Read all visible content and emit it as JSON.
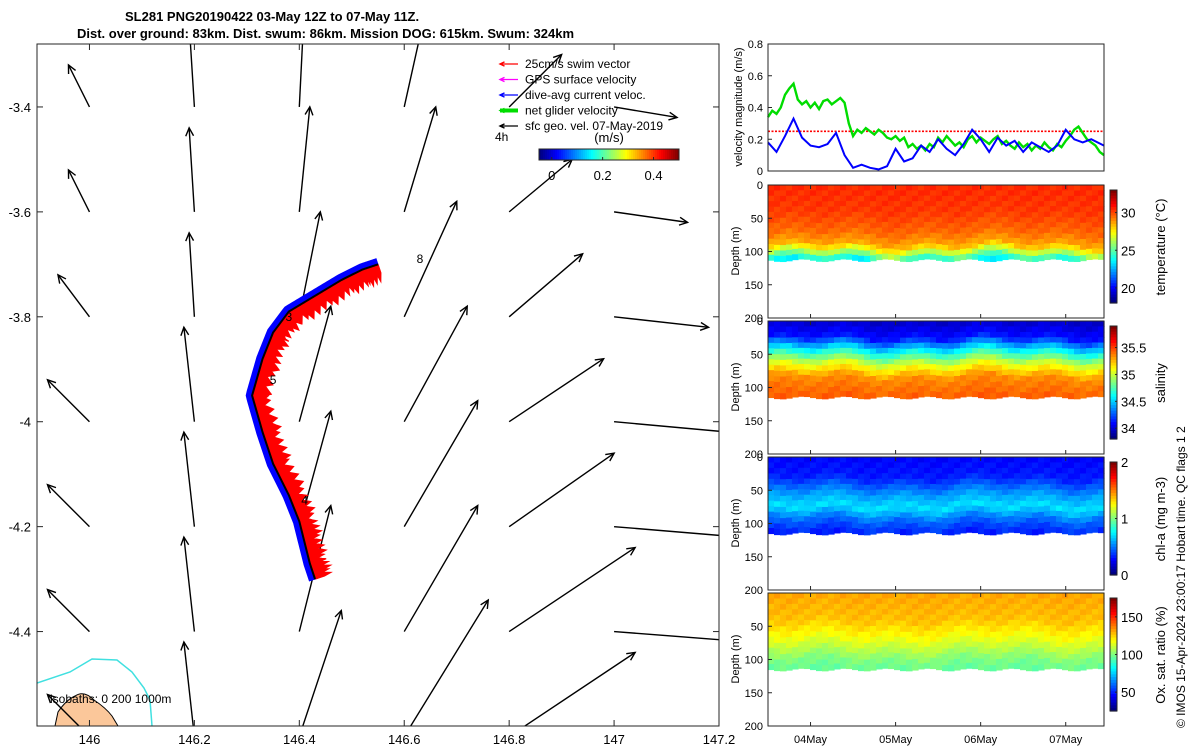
{
  "header": {
    "line1": "SL281 PNG20190422 03-May 12Z to 07-May 11Z.",
    "line2": "Dist. over ground: 83km. Dist. swum: 86km. Mission DOG: 615km. Swum: 324km"
  },
  "credit": "© IMOS 15-Apr-2024 23:00:17 Hobart time. QC flags 1  2",
  "colors": {
    "swim": "#ff0000",
    "gps": "#ff00ff",
    "dive": "#0000ff",
    "net": "#00dd00",
    "sfc": "#000000",
    "isobath200": "#40e0e0",
    "land": "#fbc79a"
  },
  "chart_data": [
    {
      "type": "map",
      "name": "track-map",
      "xlim": [
        145.9,
        147.2
      ],
      "ylim": [
        -4.58,
        -3.28
      ],
      "xticks": [
        146,
        146.2,
        146.4,
        146.6,
        146.8,
        147,
        147.2
      ],
      "xtick_labels": [
        "146",
        "146.2",
        "146.4",
        "146.6",
        "146.8",
        "147",
        "147.2"
      ],
      "yticks": [
        -3.4,
        -3.6,
        -3.8,
        -4,
        -4.2,
        -4.4
      ],
      "ytick_labels": [
        "-3.4",
        "-3.6",
        "-3.8",
        "-4",
        "-4.2",
        "-4.4"
      ],
      "legend": {
        "entries": [
          "25cm/s swim vector",
          "GPS surface velocity",
          "dive-avg current veloc.",
          "net glider velocity",
          "sfc geo. vel. 07-May-2019"
        ],
        "scale_label": "4h"
      },
      "colorbar": {
        "label": "(m/s)",
        "ticks": [
          0,
          0.2,
          0.4
        ],
        "tick_labels": [
          "0",
          "0.2",
          "0.4"
        ],
        "range": [
          -0.05,
          0.5
        ]
      },
      "isobath_label": "isobaths: 0   200  1000m",
      "track": {
        "lon": [
          146.55,
          146.52,
          146.48,
          146.43,
          146.38,
          146.35,
          146.33,
          146.31,
          146.33,
          146.35,
          146.38,
          146.4,
          146.41,
          146.42,
          146.43
        ],
        "lat": [
          -3.7,
          -3.71,
          -3.73,
          -3.76,
          -3.79,
          -3.83,
          -3.88,
          -3.95,
          -4.02,
          -4.08,
          -4.14,
          -4.19,
          -4.23,
          -4.27,
          -4.3
        ]
      },
      "day_markers": [
        {
          "label": "3",
          "lon": 146.38,
          "lat": -3.8
        },
        {
          "label": "4",
          "lon": 146.41,
          "lat": -4.15
        },
        {
          "label": "5",
          "lon": 146.35,
          "lat": -3.92
        },
        {
          "label": "8",
          "lon": 146.63,
          "lat": -3.69
        }
      ],
      "sfc_vectors": {
        "lon": [
          146,
          146.2,
          146.4,
          146.6,
          146.8,
          147
        ],
        "lat": [
          -3.4,
          -3.6,
          -3.8,
          -4.0,
          -4.2,
          -4.4,
          -4.6
        ],
        "u": [
          [
            -0.02,
            -0.005,
            0.005,
            0.02,
            0.05,
            0.06
          ],
          [
            -0.02,
            -0.005,
            0.01,
            0.03,
            0.06,
            0.07
          ],
          [
            -0.03,
            -0.005,
            0.02,
            0.05,
            0.07,
            0.09
          ],
          [
            -0.04,
            -0.01,
            0.03,
            0.06,
            0.09,
            0.11
          ],
          [
            -0.04,
            -0.01,
            0.03,
            0.07,
            0.1,
            0.12
          ],
          [
            -0.04,
            -0.01,
            0.03,
            0.07,
            0.12,
            0.13
          ],
          [
            -0.04,
            -0.01,
            0.04,
            0.08,
            0.12,
            0.14
          ]
        ],
        "v": [
          [
            0.04,
            0.08,
            0.1,
            0.09,
            0.05,
            -0.01
          ],
          [
            0.04,
            0.08,
            0.1,
            0.1,
            0.05,
            -0.01
          ],
          [
            0.04,
            0.08,
            0.1,
            0.11,
            0.06,
            -0.01
          ],
          [
            0.04,
            0.09,
            0.11,
            0.11,
            0.06,
            -0.01
          ],
          [
            0.04,
            0.09,
            0.11,
            0.12,
            0.07,
            -0.01
          ],
          [
            0.04,
            0.09,
            0.12,
            0.12,
            0.08,
            -0.01
          ],
          [
            0.04,
            0.09,
            0.12,
            0.13,
            0.08,
            -0.01
          ]
        ]
      }
    },
    {
      "type": "line",
      "name": "velocity-magnitude",
      "ylabel": "velocity magnitude (m/s)",
      "ylim": [
        0,
        0.8
      ],
      "yticks": [
        0,
        0.2,
        0.4,
        0.6,
        0.8
      ],
      "ytick_labels": [
        "0",
        "0.2",
        "0.4",
        "0.6",
        "0.8"
      ],
      "xlim": [
        3.5,
        7.45
      ],
      "threshold": 0.25,
      "series": [
        {
          "name": "net glider velocity",
          "x": [
            3.5,
            3.55,
            3.6,
            3.65,
            3.7,
            3.75,
            3.8,
            3.85,
            3.9,
            3.95,
            4.0,
            4.05,
            4.1,
            4.15,
            4.2,
            4.25,
            4.3,
            4.35,
            4.4,
            4.45,
            4.5,
            4.55,
            4.6,
            4.65,
            4.7,
            4.75,
            4.8,
            4.85,
            4.9,
            4.95,
            5.0,
            5.05,
            5.1,
            5.15,
            5.2,
            5.25,
            5.3,
            5.35,
            5.4,
            5.45,
            5.5,
            5.55,
            5.6,
            5.65,
            5.7,
            5.75,
            5.8,
            5.85,
            5.9,
            5.95,
            6.0,
            6.05,
            6.1,
            6.15,
            6.2,
            6.25,
            6.3,
            6.35,
            6.4,
            6.45,
            6.5,
            6.55,
            6.6,
            6.65,
            6.7,
            6.75,
            6.8,
            6.85,
            6.9,
            6.95,
            7.0,
            7.05,
            7.1,
            7.15,
            7.2,
            7.25,
            7.3,
            7.35,
            7.4,
            7.45
          ],
          "y": [
            0.34,
            0.38,
            0.36,
            0.4,
            0.48,
            0.52,
            0.55,
            0.45,
            0.42,
            0.44,
            0.4,
            0.43,
            0.39,
            0.44,
            0.45,
            0.42,
            0.44,
            0.46,
            0.43,
            0.3,
            0.22,
            0.26,
            0.24,
            0.27,
            0.25,
            0.23,
            0.26,
            0.24,
            0.21,
            0.2,
            0.22,
            0.19,
            0.21,
            0.15,
            0.17,
            0.14,
            0.16,
            0.13,
            0.17,
            0.15,
            0.21,
            0.18,
            0.22,
            0.19,
            0.16,
            0.18,
            0.15,
            0.2,
            0.22,
            0.18,
            0.21,
            0.19,
            0.17,
            0.2,
            0.22,
            0.17,
            0.19,
            0.16,
            0.14,
            0.18,
            0.15,
            0.17,
            0.13,
            0.16,
            0.14,
            0.18,
            0.15,
            0.13,
            0.17,
            0.15,
            0.19,
            0.22,
            0.26,
            0.28,
            0.24,
            0.2,
            0.18,
            0.16,
            0.12,
            0.1
          ]
        },
        {
          "name": "dive-avg current veloc.",
          "x": [
            3.5,
            3.6,
            3.7,
            3.8,
            3.9,
            4.0,
            4.1,
            4.2,
            4.3,
            4.4,
            4.5,
            4.6,
            4.7,
            4.8,
            4.9,
            5.0,
            5.1,
            5.2,
            5.3,
            5.4,
            5.5,
            5.6,
            5.7,
            5.8,
            5.9,
            6.0,
            6.1,
            6.2,
            6.3,
            6.4,
            6.5,
            6.6,
            6.7,
            6.8,
            6.9,
            7.0,
            7.1,
            7.2,
            7.3,
            7.45
          ],
          "y": [
            0.18,
            0.12,
            0.22,
            0.33,
            0.21,
            0.16,
            0.15,
            0.17,
            0.24,
            0.1,
            0.02,
            0.04,
            0.02,
            0.01,
            0.03,
            0.14,
            0.06,
            0.08,
            0.16,
            0.12,
            0.2,
            0.14,
            0.1,
            0.17,
            0.26,
            0.2,
            0.12,
            0.21,
            0.16,
            0.19,
            0.12,
            0.18,
            0.15,
            0.12,
            0.16,
            0.26,
            0.2,
            0.18,
            0.2,
            0.16
          ]
        }
      ]
    },
    {
      "type": "heatmap",
      "name": "temperature-section",
      "ylabel": "Depth (m)",
      "cbar_label": "temperature (°C)",
      "ylim": [
        0,
        200
      ],
      "yticks": [
        0,
        50,
        100,
        150,
        200
      ],
      "ytick_labels": [
        "0",
        "50",
        "100",
        "150",
        "200"
      ],
      "clim": [
        18,
        33
      ],
      "cticks": [
        20,
        25,
        30
      ],
      "ctick_labels": [
        "20",
        "25",
        "30"
      ],
      "max_depth": 113,
      "layers_depth": [
        10,
        40,
        70,
        90,
        105,
        113
      ],
      "layers_value": [
        30.5,
        30.3,
        29.6,
        28.6,
        25.5,
        23.5
      ]
    },
    {
      "type": "heatmap",
      "name": "salinity-section",
      "ylabel": "Depth (m)",
      "cbar_label": "salinity",
      "ylim": [
        0,
        200
      ],
      "yticks": [
        0,
        50,
        100,
        150,
        200
      ],
      "ytick_labels": [
        "0",
        "50",
        "100",
        "150",
        "200"
      ],
      "clim": [
        33.8,
        35.9
      ],
      "cticks": [
        34,
        34.5,
        35,
        35.5
      ],
      "ctick_labels": [
        "34",
        "34.5",
        "35",
        "35.5"
      ],
      "max_depth": 115,
      "layers_depth": [
        0,
        25,
        45,
        65,
        85,
        115
      ],
      "layers_value": [
        33.95,
        34.1,
        34.6,
        35.05,
        35.35,
        35.45
      ]
    },
    {
      "type": "heatmap",
      "name": "chla-section",
      "ylabel": "Depth (m)",
      "cbar_label": "chl-a (mg m-3)",
      "ylim": [
        0,
        200
      ],
      "yticks": [
        0,
        50,
        100,
        150,
        200
      ],
      "ytick_labels": [
        "0",
        "50",
        "100",
        "150",
        "200"
      ],
      "clim": [
        0,
        2
      ],
      "cticks": [
        0,
        1,
        2
      ],
      "ctick_labels": [
        "0",
        "1",
        "2"
      ],
      "max_depth": 115,
      "layers_depth": [
        0,
        30,
        55,
        75,
        95,
        115
      ],
      "layers_value": [
        0.25,
        0.3,
        0.55,
        0.7,
        0.45,
        0.3
      ]
    },
    {
      "type": "heatmap",
      "name": "oxygen-section",
      "ylabel": "Depth (m)",
      "cbar_label": "Ox. sat. ratio (%)",
      "ylim": [
        0,
        200
      ],
      "yticks": [
        50,
        100,
        150,
        200
      ],
      "ytick_labels": [
        "50",
        "100",
        "150",
        "200"
      ],
      "clim": [
        25,
        175
      ],
      "cticks": [
        50,
        100,
        150
      ],
      "ctick_labels": [
        "50",
        "100",
        "150"
      ],
      "max_depth": 115,
      "layers_depth": [
        0,
        40,
        65,
        85,
        100,
        115
      ],
      "layers_value": [
        132,
        128,
        118,
        108,
        100,
        96
      ],
      "xticks": [
        4,
        5,
        6,
        7
      ],
      "xtick_labels": [
        "04May",
        "05May",
        "06May",
        "07May"
      ]
    }
  ]
}
